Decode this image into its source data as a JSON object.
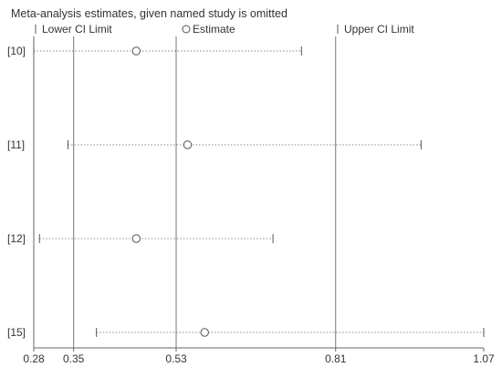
{
  "chart_data": {
    "type": "scatter",
    "title": "Meta-analysis estimates, given named study is omitted",
    "legend": {
      "placement": "top",
      "items": [
        {
          "marker": "bar",
          "label": "Lower CI Limit"
        },
        {
          "marker": "circle",
          "label": "Estimate"
        },
        {
          "marker": "bar",
          "label": "Upper CI Limit"
        }
      ]
    },
    "studies": [
      {
        "label": "[10]",
        "lower": 0.28,
        "estimate": 0.46,
        "upper": 0.75
      },
      {
        "label": "[11]",
        "lower": 0.34,
        "estimate": 0.55,
        "upper": 0.96
      },
      {
        "label": "[12]",
        "lower": 0.29,
        "estimate": 0.46,
        "upper": 0.7
      },
      {
        "label": "[15]",
        "lower": 0.39,
        "estimate": 0.58,
        "upper": 1.07
      }
    ],
    "reference_lines": [
      0.35,
      0.53,
      0.81
    ],
    "xticks": [
      "0.28",
      "0.35",
      "0.53",
      "0.81",
      "1.07"
    ],
    "xlim": [
      0.28,
      1.07
    ]
  }
}
